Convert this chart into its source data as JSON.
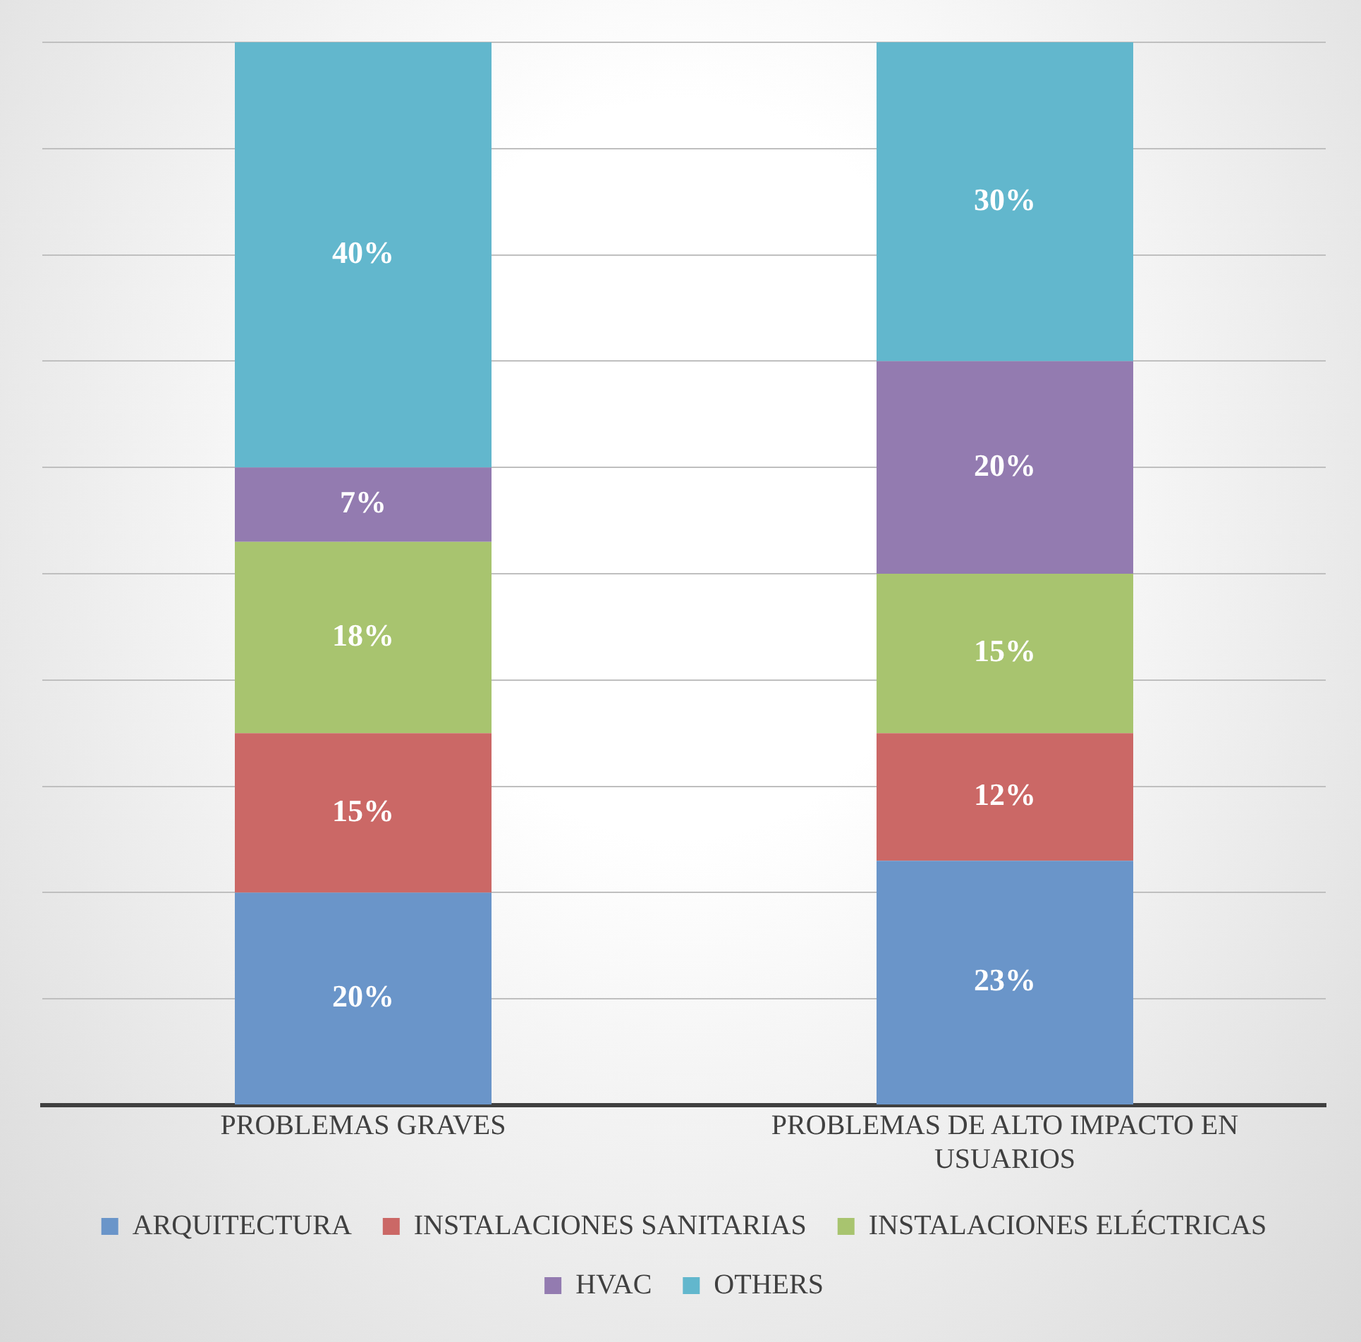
{
  "chart_data": {
    "type": "bar",
    "stacked": true,
    "categories": [
      "PROBLEMAS GRAVES",
      "PROBLEMAS DE ALTO IMPACTO EN USUARIOS"
    ],
    "series": [
      {
        "name": "ARQUITECTURA",
        "color": "#6a95c9",
        "values": [
          20,
          23
        ],
        "value_labels": [
          "20%",
          "23%"
        ]
      },
      {
        "name": "INSTALACIONES SANITARIAS",
        "color": "#cb6866",
        "values": [
          15,
          12
        ],
        "value_labels": [
          "15%",
          "12%"
        ]
      },
      {
        "name": "INSTALACIONES ELÉCTRICAS",
        "color": "#a8c46f",
        "values": [
          18,
          15
        ],
        "value_labels": [
          "18%",
          "15%"
        ]
      },
      {
        "name": "HVAC",
        "color": "#937bb0",
        "values": [
          7,
          20
        ],
        "value_labels": [
          "7%",
          "20%"
        ]
      },
      {
        "name": "OTHERS",
        "color": "#62b7cd",
        "values": [
          40,
          30
        ],
        "value_labels": [
          "40%",
          "30%"
        ]
      }
    ],
    "tick_labels": "x",
    "grid": "y",
    "legend": "bottom"
  }
}
